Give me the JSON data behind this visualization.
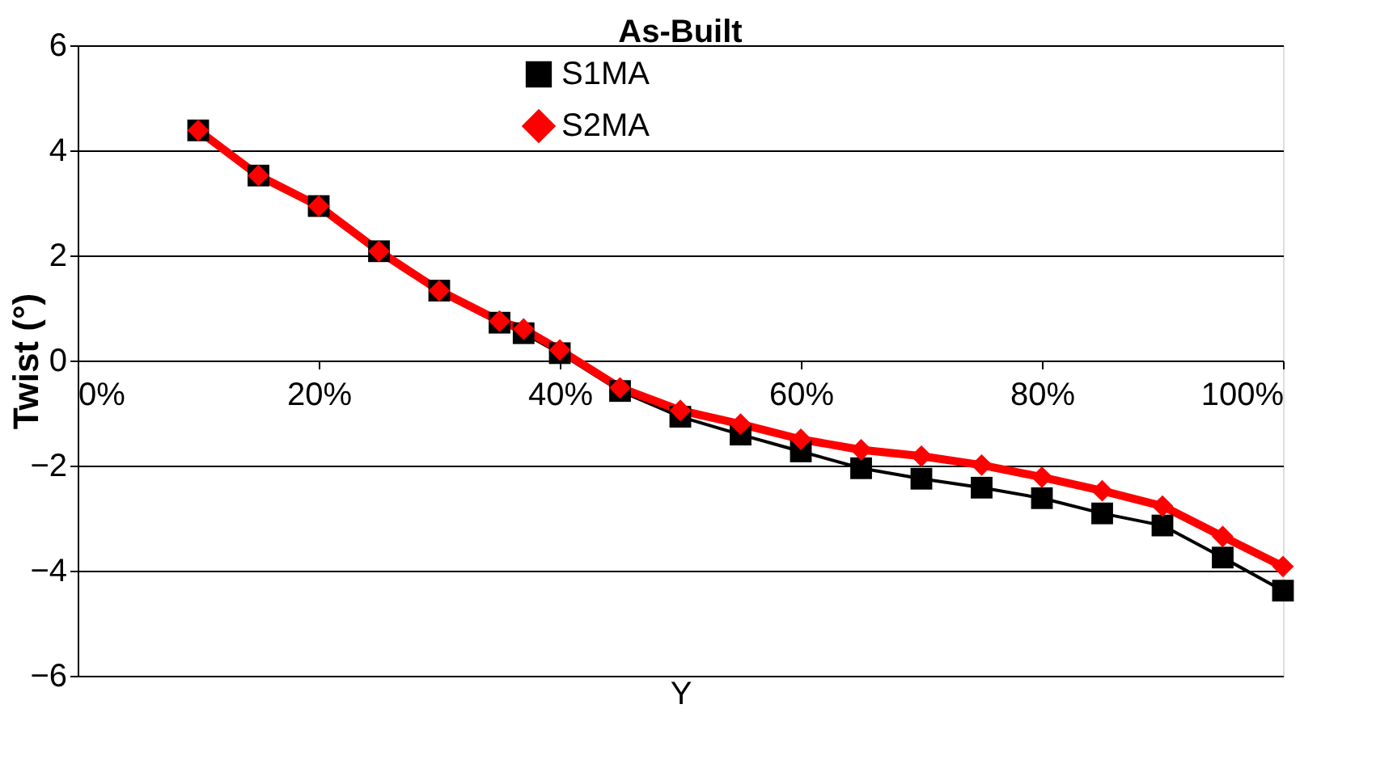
{
  "chart_data": {
    "type": "line",
    "title": "As-Built",
    "xlabel": "Y",
    "ylabel": "Twist (°)",
    "x": [
      0.1,
      0.15,
      0.2,
      0.25,
      0.3,
      0.35,
      0.37,
      0.4,
      0.45,
      0.5,
      0.55,
      0.6,
      0.65,
      0.7,
      0.75,
      0.8,
      0.85,
      0.9,
      0.95,
      1.0
    ],
    "series": [
      {
        "name": "S1MA",
        "color": "#000000",
        "marker": "square",
        "values": [
          4.38,
          3.52,
          2.94,
          2.08,
          1.33,
          0.72,
          0.52,
          0.14,
          -0.58,
          -1.07,
          -1.41,
          -1.73,
          -2.05,
          -2.25,
          -2.42,
          -2.62,
          -2.91,
          -3.14,
          -3.75,
          -4.38
        ]
      },
      {
        "name": "S2MA",
        "color": "#ff0000",
        "marker": "diamond",
        "values": [
          4.38,
          3.52,
          2.94,
          2.08,
          1.33,
          0.75,
          0.6,
          0.2,
          -0.52,
          -0.95,
          -1.21,
          -1.5,
          -1.7,
          -1.82,
          -1.99,
          -2.22,
          -2.48,
          -2.77,
          -3.35,
          -3.92
        ]
      }
    ],
    "xlim": [
      0,
      1
    ],
    "xticks": [
      {
        "value": 0,
        "label": "0%"
      },
      {
        "value": 0.2,
        "label": "20%"
      },
      {
        "value": 0.4,
        "label": "40%"
      },
      {
        "value": 0.6,
        "label": "60%"
      },
      {
        "value": 0.8,
        "label": "80%"
      },
      {
        "value": 1,
        "label": "100%"
      }
    ],
    "ylim": [
      -6,
      6
    ],
    "yticks": [
      -6,
      -4,
      -2,
      0,
      2,
      4,
      6
    ],
    "grid": "y",
    "legend": "top",
    "line_style": "solid"
  }
}
